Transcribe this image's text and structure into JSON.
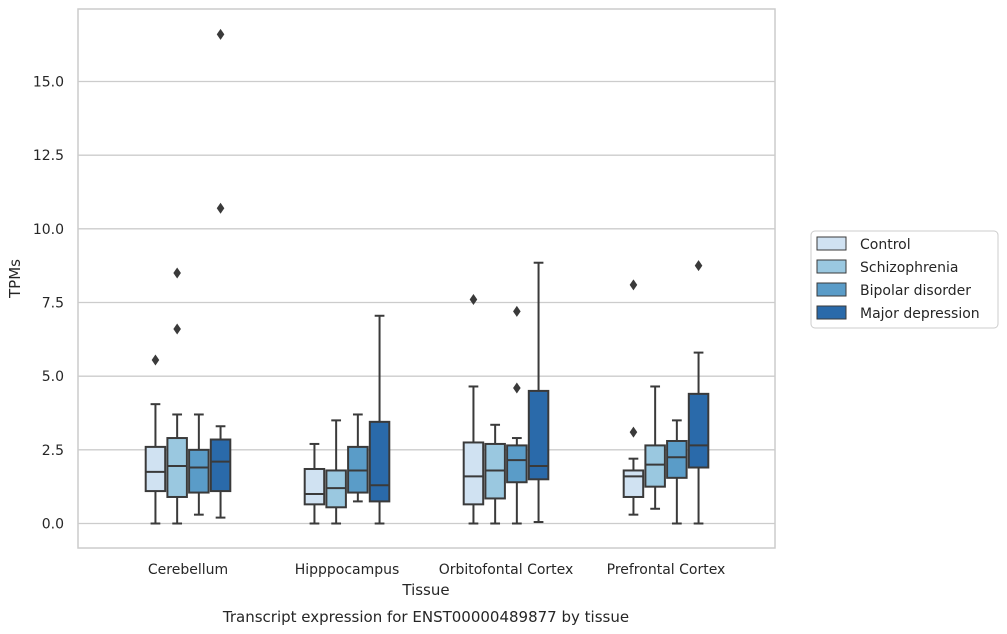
{
  "chart_data": {
    "type": "box",
    "xlabel": "Tissue",
    "ylabel": "TPMs",
    "caption": "Transcript expression for ENST00000489877 by tissue",
    "ylim": [
      -0.8,
      17.0
    ],
    "yticks": [
      "0.0",
      "2.5",
      "5.0",
      "7.5",
      "10.0",
      "12.5",
      "15.0"
    ],
    "ytick_values": [
      0,
      2.5,
      5,
      7.5,
      10,
      12.5,
      15
    ],
    "grid": "horizontal",
    "legend_position": "right",
    "categories": [
      "Cerebellum",
      "Hipppocampus",
      "Orbitofontal Cortex",
      "Prefrontal Cortex"
    ],
    "series": [
      {
        "name": "Control",
        "color": "#d0e2f2",
        "boxes": [
          {
            "whisker_low": 0.0,
            "q1": 1.1,
            "median": 1.75,
            "q3": 2.6,
            "whisker_high": 4.05,
            "outliers": [
              5.55
            ]
          },
          {
            "whisker_low": 0.0,
            "q1": 0.65,
            "median": 1.0,
            "q3": 1.85,
            "whisker_high": 2.7,
            "outliers": []
          },
          {
            "whisker_low": 0.0,
            "q1": 0.65,
            "median": 1.6,
            "q3": 2.75,
            "whisker_high": 4.65,
            "outliers": [
              7.6
            ]
          },
          {
            "whisker_low": 0.3,
            "q1": 0.9,
            "median": 1.6,
            "q3": 1.8,
            "whisker_high": 2.2,
            "outliers": [
              3.1,
              8.1
            ]
          }
        ]
      },
      {
        "name": "Schizophrenia",
        "color": "#9ac8e0",
        "boxes": [
          {
            "whisker_low": 0.0,
            "q1": 0.9,
            "median": 1.95,
            "q3": 2.9,
            "whisker_high": 3.7,
            "outliers": [
              6.6,
              8.5
            ]
          },
          {
            "whisker_low": 0.0,
            "q1": 0.55,
            "median": 1.2,
            "q3": 1.8,
            "whisker_high": 3.5,
            "outliers": []
          },
          {
            "whisker_low": 0.0,
            "q1": 0.85,
            "median": 1.8,
            "q3": 2.7,
            "whisker_high": 3.35,
            "outliers": []
          },
          {
            "whisker_low": 0.5,
            "q1": 1.25,
            "median": 2.0,
            "q3": 2.65,
            "whisker_high": 4.65,
            "outliers": []
          }
        ]
      },
      {
        "name": "Bipolar disorder",
        "color": "#5a9cc8",
        "boxes": [
          {
            "whisker_low": 0.3,
            "q1": 1.05,
            "median": 1.9,
            "q3": 2.5,
            "whisker_high": 3.7,
            "outliers": []
          },
          {
            "whisker_low": 0.75,
            "q1": 1.05,
            "median": 1.8,
            "q3": 2.6,
            "whisker_high": 3.7,
            "outliers": []
          },
          {
            "whisker_low": 0.0,
            "q1": 1.4,
            "median": 2.15,
            "q3": 2.65,
            "whisker_high": 2.9,
            "outliers": [
              4.6,
              7.2
            ]
          },
          {
            "whisker_low": 0.0,
            "q1": 1.55,
            "median": 2.25,
            "q3": 2.8,
            "whisker_high": 3.5,
            "outliers": []
          }
        ]
      },
      {
        "name": "Major depression",
        "color": "#2a6aaa",
        "boxes": [
          {
            "whisker_low": 0.2,
            "q1": 1.1,
            "median": 2.1,
            "q3": 2.85,
            "whisker_high": 3.3,
            "outliers": [
              10.7,
              16.6
            ]
          },
          {
            "whisker_low": 0.0,
            "q1": 0.75,
            "median": 1.3,
            "q3": 3.45,
            "whisker_high": 7.05,
            "outliers": []
          },
          {
            "whisker_low": 0.05,
            "q1": 1.5,
            "median": 1.95,
            "q3": 4.5,
            "whisker_high": 8.85,
            "outliers": []
          },
          {
            "whisker_low": 0.0,
            "q1": 1.9,
            "median": 2.65,
            "q3": 4.4,
            "whisker_high": 5.8,
            "outliers": [
              8.75
            ]
          }
        ]
      }
    ]
  }
}
